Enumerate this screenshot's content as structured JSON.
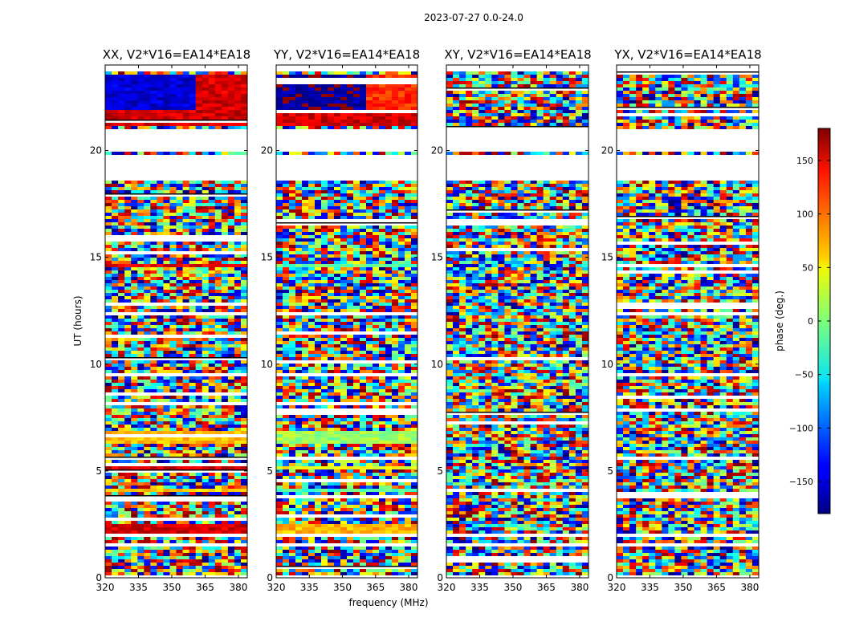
{
  "figure": {
    "suptitle": "2023-07-27 0.0-24.0",
    "xlabel": "frequency (MHz)",
    "ylabel": "UT (hours)",
    "colorbar_label": "phase (deg.)"
  },
  "chart_data": {
    "type": "heatmap",
    "title": "2023-07-27 0.0-24.0",
    "xlabel": "frequency (MHz)",
    "ylabel": "UT (hours)",
    "xlim": [
      320,
      384
    ],
    "ylim": [
      0,
      24
    ],
    "xticks": [
      320,
      335,
      350,
      365,
      380
    ],
    "yticks": [
      0,
      5,
      10,
      15,
      20
    ],
    "colormap": "jet",
    "colorbar": {
      "label": "phase (deg.)",
      "range": [
        -180,
        180
      ],
      "ticks": [
        -150,
        -100,
        -50,
        0,
        50,
        100,
        150
      ],
      "tick_labels": [
        "−150",
        "−100",
        "−50",
        "0",
        "50",
        "100",
        "150"
      ]
    },
    "panels": [
      {
        "title": "XX, V2*V16=EA14*EA18",
        "polarization": "XX"
      },
      {
        "title": "YY, V2*V16=EA14*EA18",
        "polarization": "YY"
      },
      {
        "title": "XY, V2*V16=EA14*EA18",
        "polarization": "XY"
      },
      {
        "title": "YX, V2*V16=EA14*EA18",
        "polarization": "YX"
      }
    ],
    "blank_intervals_hours": [
      [
        20.0,
        21.0
      ],
      [
        18.7,
        19.9
      ],
      [
        2.0,
        2.2
      ],
      [
        1.5,
        1.7
      ],
      [
        0.05,
        0.15
      ]
    ],
    "coherent_bands": [
      {
        "from": 22.0,
        "to": 23.6,
        "xx": [
          -150,
          150
        ],
        "yy": [
          -170,
          120
        ]
      },
      {
        "from": 21.2,
        "to": 22.0,
        "xx": [
          150
        ],
        "yy": [
          150
        ]
      },
      {
        "from": 6.4,
        "to": 6.9,
        "xx": [
          70
        ],
        "yy": [
          10
        ]
      },
      {
        "from": 5.1,
        "to": 5.3,
        "xx": [
          150
        ],
        "yy": [
          40
        ]
      },
      {
        "from": 4.1,
        "to": 4.3,
        "xx": [
          60
        ],
        "yy": [
          -20
        ]
      },
      {
        "from": 2.2,
        "to": 2.6,
        "xx": [
          150
        ],
        "yy": [
          70
        ]
      },
      {
        "from": 14.6,
        "to": 14.8,
        "xx": [
          140
        ],
        "yy": [
          -10
        ]
      }
    ]
  }
}
